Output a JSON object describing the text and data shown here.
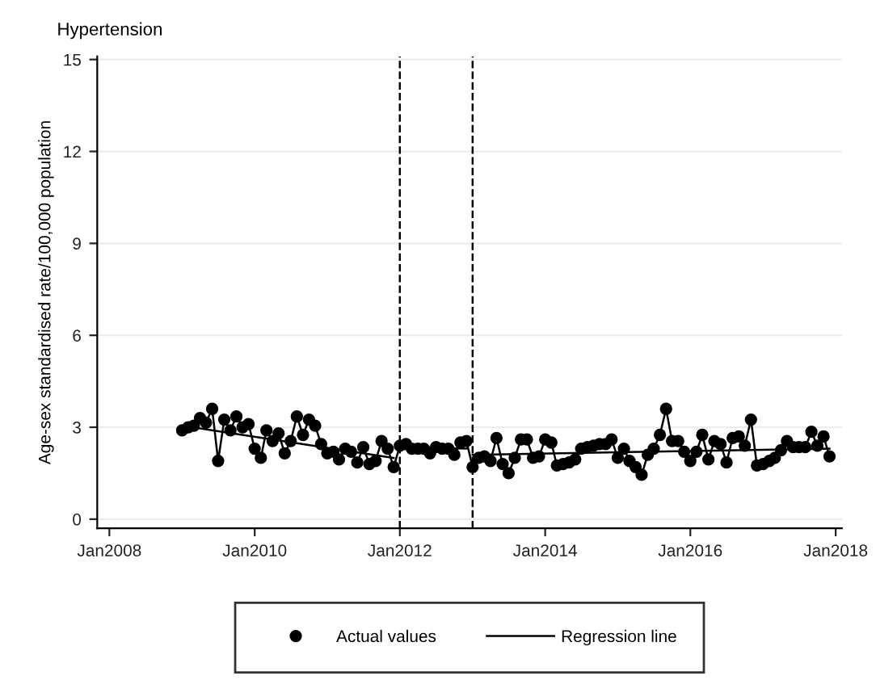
{
  "chart_data": {
    "type": "line",
    "title": "Hypertension",
    "ylabel": "Age-sex standardised rate/100,000 population",
    "x": [
      "2009-01",
      "2009-02",
      "2009-03",
      "2009-04",
      "2009-05",
      "2009-06",
      "2009-07",
      "2009-08",
      "2009-09",
      "2009-10",
      "2009-11",
      "2009-12",
      "2010-01",
      "2010-02",
      "2010-03",
      "2010-04",
      "2010-05",
      "2010-06",
      "2010-07",
      "2010-08",
      "2010-09",
      "2010-10",
      "2010-11",
      "2010-12",
      "2011-01",
      "2011-02",
      "2011-03",
      "2011-04",
      "2011-05",
      "2011-06",
      "2011-07",
      "2011-08",
      "2011-09",
      "2011-10",
      "2011-11",
      "2011-12",
      "2012-01",
      "2012-02",
      "2012-03",
      "2012-04",
      "2012-05",
      "2012-06",
      "2012-07",
      "2012-08",
      "2012-09",
      "2012-10",
      "2012-11",
      "2012-12",
      "2013-01",
      "2013-02",
      "2013-03",
      "2013-04",
      "2013-05",
      "2013-06",
      "2013-07",
      "2013-08",
      "2013-09",
      "2013-10",
      "2013-11",
      "2013-12",
      "2014-01",
      "2014-02",
      "2014-03",
      "2014-04",
      "2014-05",
      "2014-06",
      "2014-07",
      "2014-08",
      "2014-09",
      "2014-10",
      "2014-11",
      "2014-12",
      "2015-01",
      "2015-02",
      "2015-03",
      "2015-04",
      "2015-05",
      "2015-06",
      "2015-07",
      "2015-08",
      "2015-09",
      "2015-10",
      "2015-11",
      "2015-12",
      "2016-01",
      "2016-02",
      "2016-03",
      "2016-04",
      "2016-05",
      "2016-06",
      "2016-07",
      "2016-08",
      "2016-09",
      "2016-10",
      "2016-11",
      "2016-12",
      "2017-01",
      "2017-02",
      "2017-03",
      "2017-04",
      "2017-05",
      "2017-06",
      "2017-07",
      "2017-08",
      "2017-09",
      "2017-10",
      "2017-11",
      "2017-12"
    ],
    "series": [
      {
        "name": "Actual values",
        "marker": "circle",
        "color": "#000000",
        "values": [
          2.9,
          3.0,
          3.05,
          3.3,
          3.15,
          3.6,
          1.9,
          3.25,
          2.9,
          3.35,
          3.0,
          3.1,
          2.3,
          2.0,
          2.9,
          2.55,
          2.8,
          2.15,
          2.55,
          3.35,
          2.75,
          3.25,
          3.05,
          2.45,
          2.15,
          2.2,
          1.95,
          2.3,
          2.2,
          1.85,
          2.35,
          1.8,
          1.9,
          2.55,
          2.3,
          1.7,
          2.4,
          2.45,
          2.3,
          2.3,
          2.3,
          2.15,
          2.35,
          2.3,
          2.3,
          2.1,
          2.5,
          2.55,
          1.7,
          2.0,
          2.05,
          1.9,
          2.65,
          1.8,
          1.5,
          2.0,
          2.6,
          2.6,
          2.0,
          2.05,
          2.6,
          2.5,
          1.75,
          1.8,
          1.85,
          1.95,
          2.3,
          2.35,
          2.4,
          2.45,
          2.45,
          2.6,
          2.0,
          2.3,
          1.9,
          1.7,
          1.45,
          2.1,
          2.3,
          2.75,
          3.6,
          2.55,
          2.55,
          2.2,
          1.9,
          2.2,
          2.75,
          1.95,
          2.55,
          2.45,
          1.85,
          2.65,
          2.7,
          2.4,
          3.25,
          1.75,
          1.8,
          1.9,
          2.0,
          2.25,
          2.55,
          2.35,
          2.35,
          2.35,
          2.85,
          2.4,
          2.7,
          2.05
        ]
      },
      {
        "name": "Regression line",
        "marker": "none",
        "color": "#000000",
        "x": [
          "2009-01",
          "2011-12"
        ],
        "values": [
          3.05,
          2.0
        ]
      },
      {
        "marker": "none",
        "color": "#000000",
        "x": [
          "2012-01",
          "2012-12"
        ],
        "values": [
          2.35,
          2.3
        ]
      },
      {
        "marker": "none",
        "color": "#000000",
        "x": [
          "2013-01",
          "2017-12"
        ],
        "values": [
          2.1,
          2.3
        ]
      }
    ],
    "xlim": [
      "2007-11",
      "2018-02"
    ],
    "xticks": [
      {
        "value": "2008-01",
        "label": "Jan2008"
      },
      {
        "value": "2010-01",
        "label": "Jan2010"
      },
      {
        "value": "2012-01",
        "label": "Jan2012"
      },
      {
        "value": "2014-01",
        "label": "Jan2014"
      },
      {
        "value": "2016-01",
        "label": "Jan2016"
      },
      {
        "value": "2018-01",
        "label": "Jan2018"
      }
    ],
    "ylim": [
      -0.3,
      15.1
    ],
    "yticks": [
      0,
      3,
      6,
      9,
      12,
      15
    ],
    "ref_lines": [
      {
        "axis": "x",
        "value": "2012-01",
        "label": null,
        "color": "#000000",
        "line_style": "dashed"
      },
      {
        "axis": "x",
        "value": "2013-01",
        "label": null,
        "color": "#000000",
        "line_style": "dashed"
      }
    ],
    "grid": "y",
    "legend": "bottom"
  }
}
